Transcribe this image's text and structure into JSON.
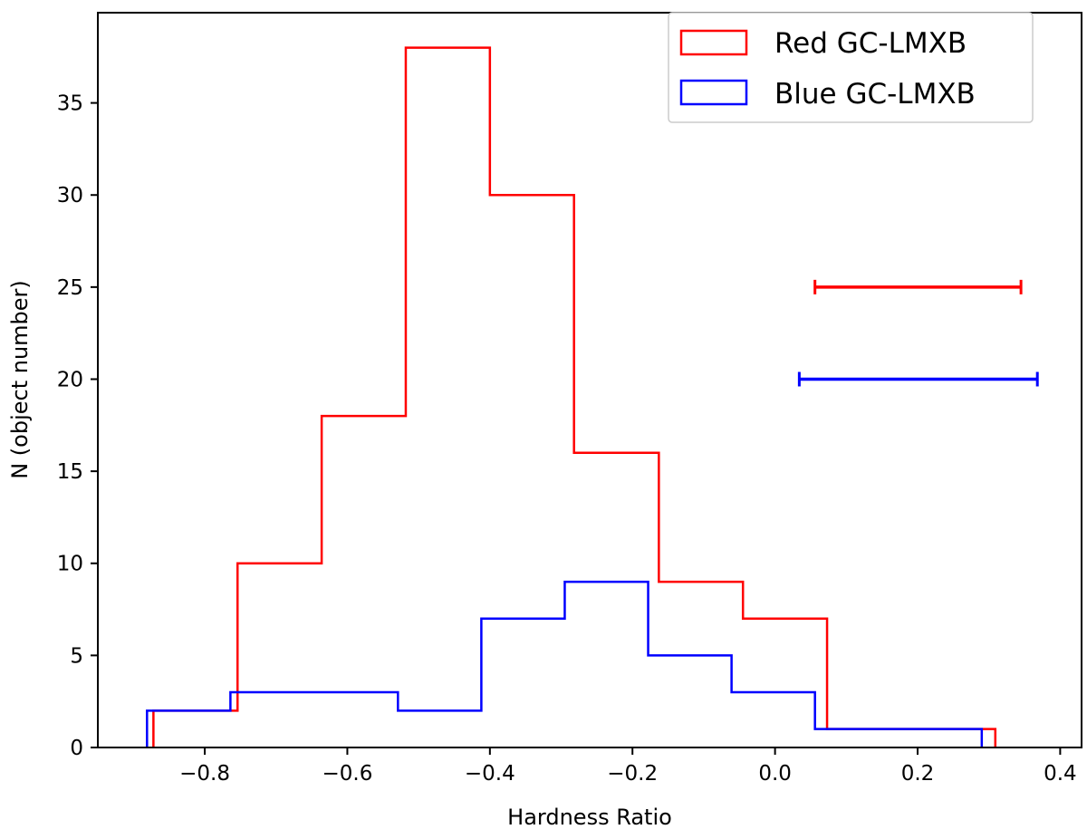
{
  "chart_data": {
    "type": "histogram",
    "title": "",
    "xlabel": "Hardness Ratio",
    "ylabel": "N (object number)",
    "xlim": [
      -0.95,
      0.43
    ],
    "ylim": [
      0,
      39.9
    ],
    "xticks": [
      -0.8,
      -0.6,
      -0.4,
      -0.2,
      0.0,
      0.2,
      0.4
    ],
    "xtick_labels": [
      "−0.8",
      "−0.6",
      "−0.4",
      "−0.2",
      "0.0",
      "0.2",
      "0.4"
    ],
    "yticks": [
      0,
      5,
      10,
      15,
      20,
      25,
      30,
      35
    ],
    "ytick_labels": [
      "0",
      "5",
      "10",
      "15",
      "20",
      "25",
      "30",
      "35"
    ],
    "grid": false,
    "legend_position": "top-right",
    "series": [
      {
        "name": "Red GC-LMXB",
        "color": "#ff0000",
        "bin_edges": [
          -0.872,
          -0.754,
          -0.636,
          -0.518,
          -0.4,
          -0.282,
          -0.163,
          -0.045,
          0.073,
          0.191,
          0.309
        ],
        "counts": [
          2,
          10,
          18,
          38,
          30,
          16,
          9,
          7,
          1,
          1
        ]
      },
      {
        "name": "Blue GC-LMXB",
        "color": "#0000ff",
        "bin_edges": [
          -0.881,
          -0.764,
          -0.646,
          -0.529,
          -0.412,
          -0.295,
          -0.178,
          -0.061,
          0.056,
          0.173,
          0.29
        ],
        "counts": [
          2,
          3,
          3,
          2,
          7,
          9,
          5,
          3,
          1,
          1
        ]
      }
    ],
    "error_bars": [
      {
        "series": "Red GC-LMXB",
        "color": "#ff0000",
        "y": 25,
        "x_low": 0.056,
        "x_high": 0.345
      },
      {
        "series": "Blue GC-LMXB",
        "color": "#0000ff",
        "y": 20,
        "x_low": 0.034,
        "x_high": 0.368
      }
    ]
  }
}
